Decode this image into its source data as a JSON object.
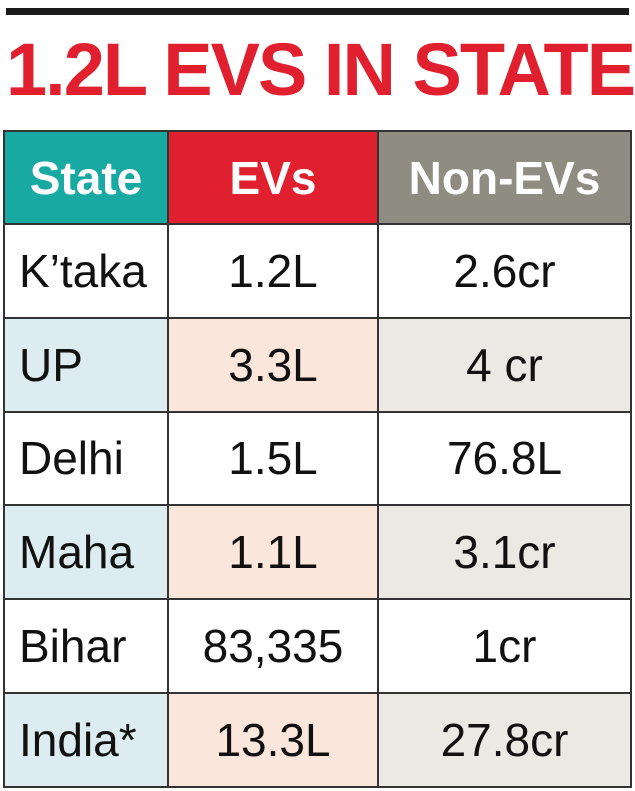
{
  "title": "1.2L EVS IN STATE",
  "colors": {
    "title": "#e0202e",
    "state_header": "#17a9a2",
    "evs_header": "#e0202e",
    "nonevs_header": "#8f8c82",
    "row_plain": "#ffffff",
    "row_state_tint": "#dcecf0",
    "row_evs_tint": "#fbe6dc",
    "row_nonevs_tint": "#ebe9e4"
  },
  "chart_data": {
    "type": "table",
    "title": "1.2L EVS IN STATE",
    "columns": [
      "State",
      "EVs",
      "Non-EVs"
    ],
    "rows": [
      [
        "K’taka",
        "1.2L",
        "2.6cr"
      ],
      [
        "UP",
        "3.3L",
        "4 cr"
      ],
      [
        "Delhi",
        "1.5L",
        "76.8L"
      ],
      [
        "Maha",
        "1.1L",
        "3.1cr"
      ],
      [
        "Bihar",
        "83,335",
        "1cr"
      ],
      [
        "India*",
        "13.3L",
        "27.8cr"
      ]
    ]
  }
}
